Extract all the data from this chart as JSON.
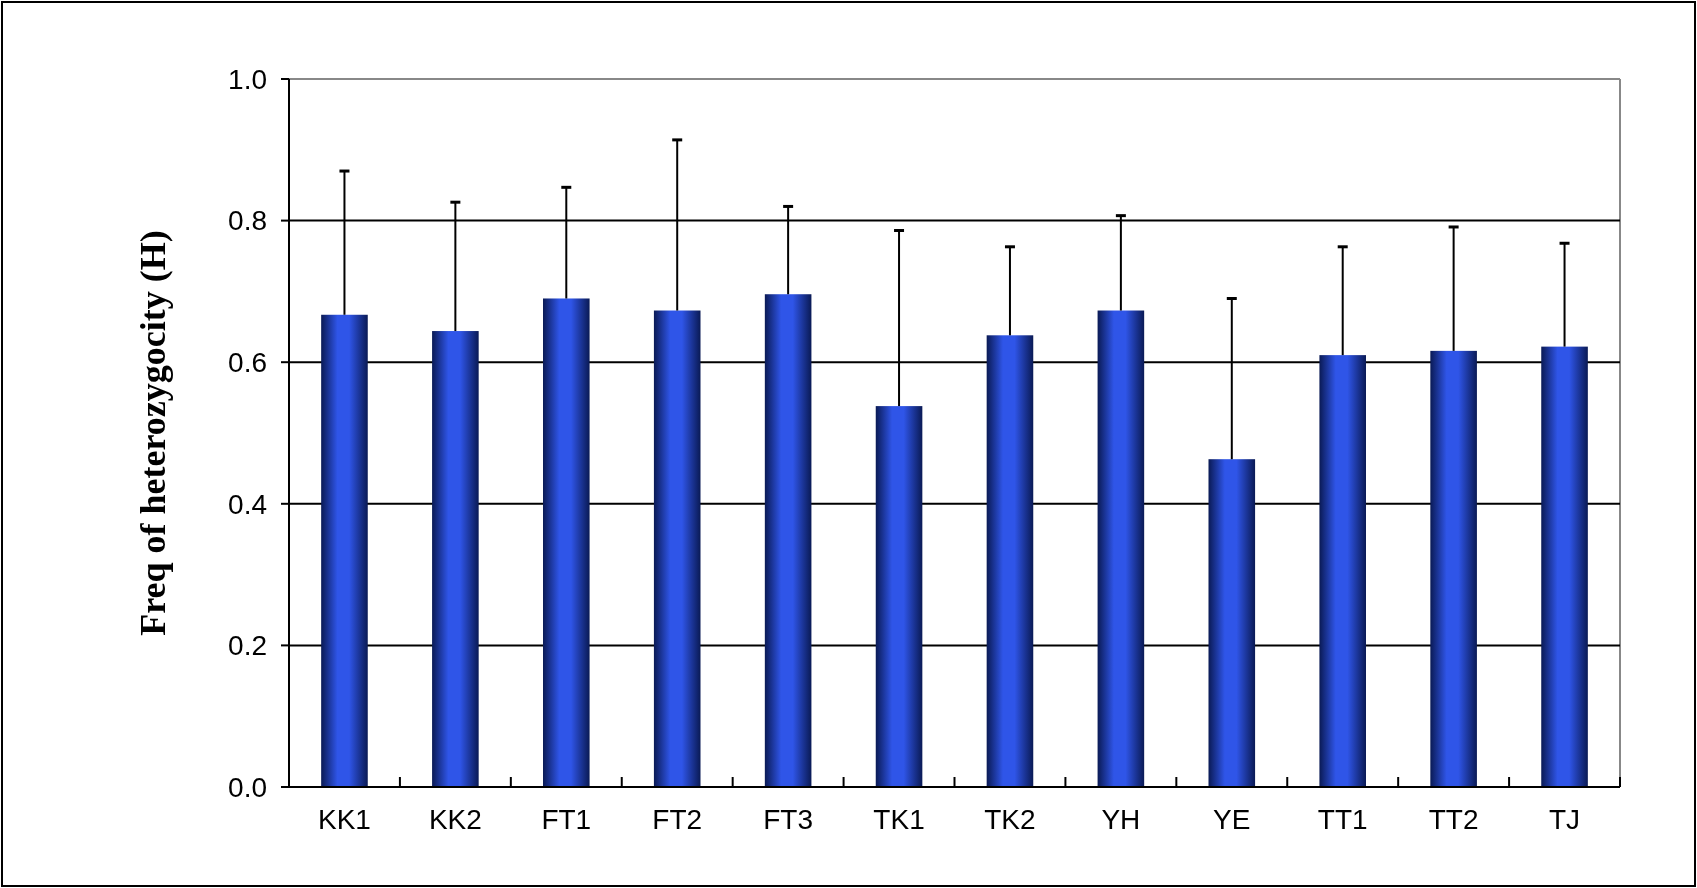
{
  "chart_data": {
    "type": "bar",
    "ylabel": "Freq of heterozygocity (H)",
    "categories": [
      "KK1",
      "KK2",
      "FT1",
      "FT2",
      "FT3",
      "TK1",
      "TK2",
      "YH",
      "YE",
      "TT1",
      "TT2",
      "TJ"
    ],
    "values": [
      0.667,
      0.644,
      0.69,
      0.673,
      0.696,
      0.538,
      0.638,
      0.673,
      0.463,
      0.61,
      0.616,
      0.622
    ],
    "errors": [
      [
        0.667,
        0.87
      ],
      [
        0.644,
        0.826
      ],
      [
        0.69,
        0.847
      ],
      [
        0.673,
        0.914
      ],
      [
        0.696,
        0.82
      ],
      [
        0.538,
        0.786
      ],
      [
        0.638,
        0.763
      ],
      [
        0.673,
        0.807
      ],
      [
        0.463,
        0.69
      ],
      [
        0.61,
        0.763
      ],
      [
        0.616,
        0.791
      ],
      [
        0.622,
        0.768
      ]
    ],
    "color": "#2f55e8",
    "ylim": [
      0,
      1
    ],
    "yticks": [
      {
        "value": 0,
        "label": "0.0"
      },
      0.2,
      0.4,
      0.6,
      0.8,
      {
        "value": 1,
        "label": "1.0"
      }
    ],
    "grid": "y"
  }
}
